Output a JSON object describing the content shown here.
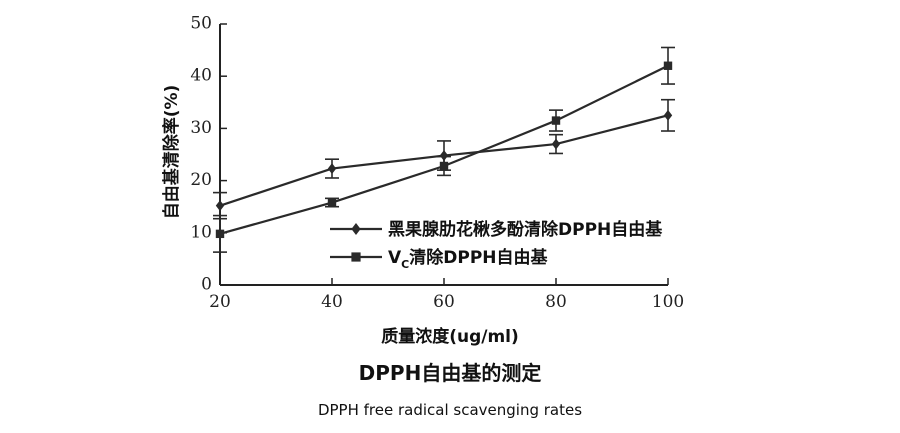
{
  "chart_data": {
    "type": "line",
    "x": [
      20,
      40,
      60,
      80,
      100
    ],
    "xlim": [
      20,
      100
    ],
    "ylim": [
      0,
      50
    ],
    "xticks": [
      "20",
      "40",
      "60",
      "80",
      "100"
    ],
    "yticks": [
      "0",
      "10",
      "20",
      "30",
      "40",
      "50"
    ],
    "xlabel": "质量浓度(ug/ml)",
    "ylabel": "自由基清除率(%)",
    "grid": false,
    "legend_position": "center-right",
    "series": [
      {
        "name": "黑果腺肋花楸多酚清除DPPH自由基",
        "marker": "diamond",
        "values": [
          15.2,
          22.3,
          24.8,
          27.0,
          32.5
        ],
        "errors": [
          2.5,
          1.8,
          2.8,
          1.8,
          3.0
        ]
      },
      {
        "name": "VC清除DPPH自由基",
        "marker": "square",
        "values": [
          9.8,
          15.8,
          22.8,
          31.5,
          42.0
        ],
        "errors": [
          3.5,
          0.8,
          1.8,
          2.0,
          3.5
        ]
      }
    ],
    "legend": [
      {
        "prefix": "黑果腺肋花楸多酚清除DPPH自由基",
        "sub": "",
        "suffix": ""
      },
      {
        "prefix": "V",
        "sub": "C",
        "suffix": "清除DPPH自由基"
      }
    ]
  },
  "caption": {
    "xlabel": "质量浓度(ug/ml)",
    "title": "DPPH自由基的测定",
    "subtitle": "DPPH free radical  scavenging rates"
  },
  "colors": {
    "line": "#2a2a2a",
    "axis": "#222222"
  }
}
